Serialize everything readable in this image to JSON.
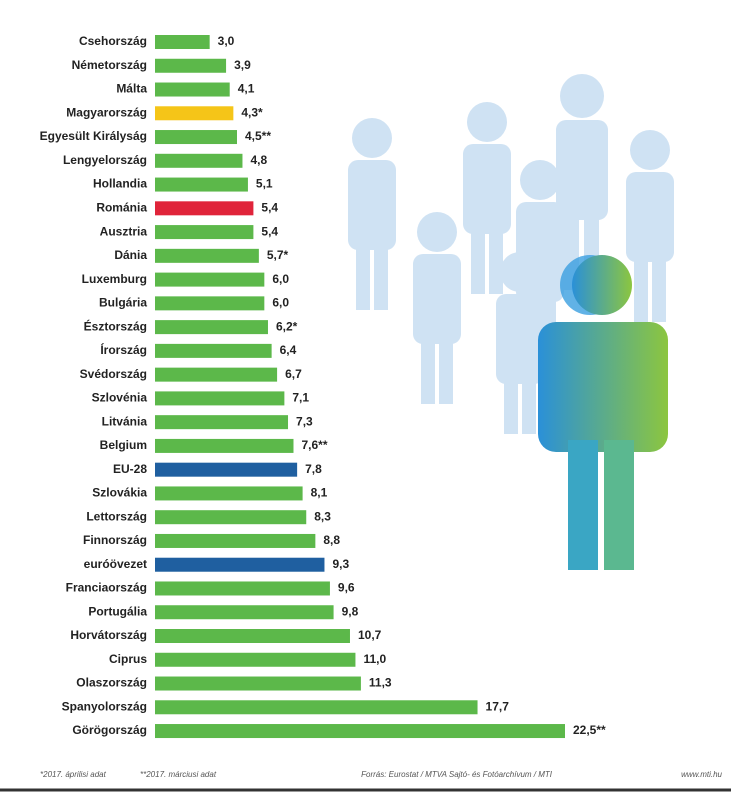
{
  "chart_data": {
    "type": "bar",
    "orientation": "horizontal",
    "categories": [
      "Csehország",
      "Németország",
      "Málta",
      "Magyarország",
      "Egyesült Királyság",
      "Lengyelország",
      "Hollandia",
      "Románia",
      "Ausztria",
      "Dánia",
      "Luxemburg",
      "Bulgária",
      "Észtország",
      "Írország",
      "Svédország",
      "Szlovénia",
      "Litvánia",
      "Belgium",
      "EU-28",
      "Szlovákia",
      "Lettország",
      "Finnország",
      "euróövezet",
      "Franciaország",
      "Portugália",
      "Horvátország",
      "Ciprus",
      "Olaszország",
      "Spanyolország",
      "Görögország"
    ],
    "values": [
      3.0,
      3.9,
      4.1,
      4.3,
      4.5,
      4.8,
      5.1,
      5.4,
      5.4,
      5.7,
      6.0,
      6.0,
      6.2,
      6.4,
      6.7,
      7.1,
      7.3,
      7.6,
      7.8,
      8.1,
      8.3,
      8.8,
      9.3,
      9.6,
      9.8,
      10.7,
      11.0,
      11.3,
      17.7,
      22.5
    ],
    "value_labels": [
      "3,0",
      "3,9",
      "4,1",
      "4,3*",
      "4,5**",
      "4,8",
      "5,1",
      "5,4",
      "5,4",
      "5,7*",
      "6,0",
      "6,0",
      "6,2*",
      "6,4",
      "6,7",
      "7,1",
      "7,3",
      "7,6**",
      "7,8",
      "8,1",
      "8,3",
      "8,8",
      "9,3",
      "9,6",
      "9,8",
      "10,7",
      "11,0",
      "11,3",
      "17,7",
      "22,5**"
    ],
    "colors": [
      "#5cb84a",
      "#5cb84a",
      "#5cb84a",
      "#f5c518",
      "#5cb84a",
      "#5cb84a",
      "#5cb84a",
      "#e0243a",
      "#5cb84a",
      "#5cb84a",
      "#5cb84a",
      "#5cb84a",
      "#5cb84a",
      "#5cb84a",
      "#5cb84a",
      "#5cb84a",
      "#5cb84a",
      "#5cb84a",
      "#1f5fa0",
      "#5cb84a",
      "#5cb84a",
      "#5cb84a",
      "#1f5fa0",
      "#5cb84a",
      "#5cb84a",
      "#5cb84a",
      "#5cb84a",
      "#5cb84a",
      "#5cb84a",
      "#5cb84a"
    ],
    "footnotes": [
      "*2017. áprilisi adat",
      "**2017. márciusi adat"
    ],
    "source": "Forrás: Eurostat / MTVA Sajtó- és Fotóarchívum / MTI",
    "website": "www.mti.hu"
  }
}
